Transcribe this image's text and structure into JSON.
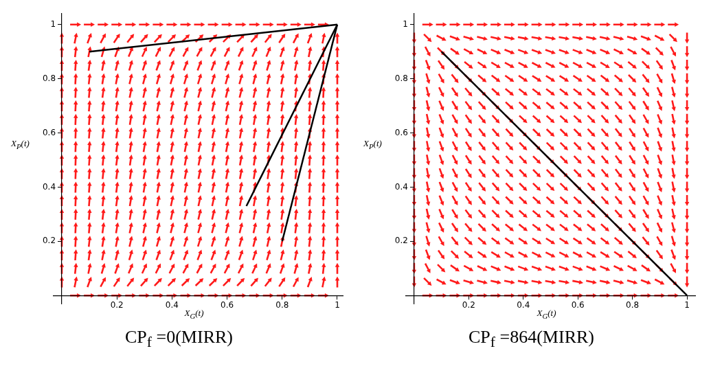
{
  "chart_data": [
    {
      "type": "line",
      "title": "CP$_{f}$ =0(MIRR)",
      "xlabel": "X$_{G}$(t)",
      "ylabel": "X$_{P}$(t)",
      "xlim": [
        -0.03,
        1.02
      ],
      "ylim": [
        -0.03,
        1.04
      ],
      "xticks": [
        0.2,
        0.4,
        0.6,
        0.8,
        1
      ],
      "yticks": [
        0.2,
        0.4,
        0.6,
        0.8,
        1
      ],
      "marker": "none",
      "series": [
        {
          "color": "#000000",
          "x": [
            0.1,
            1
          ],
          "values": [
            0.9,
            1
          ]
        },
        {
          "color": "#000000",
          "x": [
            0.67,
            1
          ],
          "values": [
            0.33,
            1
          ]
        },
        {
          "color": "#000000",
          "x": [
            0.8,
            1
          ],
          "values": [
            0.2,
            1
          ]
        }
      ]
    },
    {
      "type": "line",
      "title": "CP$_{f}$ =864(MIRR)",
      "xlabel": "X$_{G}$(t)",
      "ylabel": "X$_{P}$(t)",
      "xlim": [
        -0.03,
        1.03
      ],
      "ylim": [
        -0.03,
        1.04
      ],
      "xticks": [
        0.2,
        0.4,
        0.6,
        0.8,
        1
      ],
      "yticks": [
        0.2,
        0.4,
        0.6,
        0.8,
        1
      ],
      "marker": "none",
      "series": [
        {
          "color": "#000000",
          "x": [
            0.1,
            1
          ],
          "values": [
            0.9,
            0
          ]
        }
      ]
    }
  ]
}
